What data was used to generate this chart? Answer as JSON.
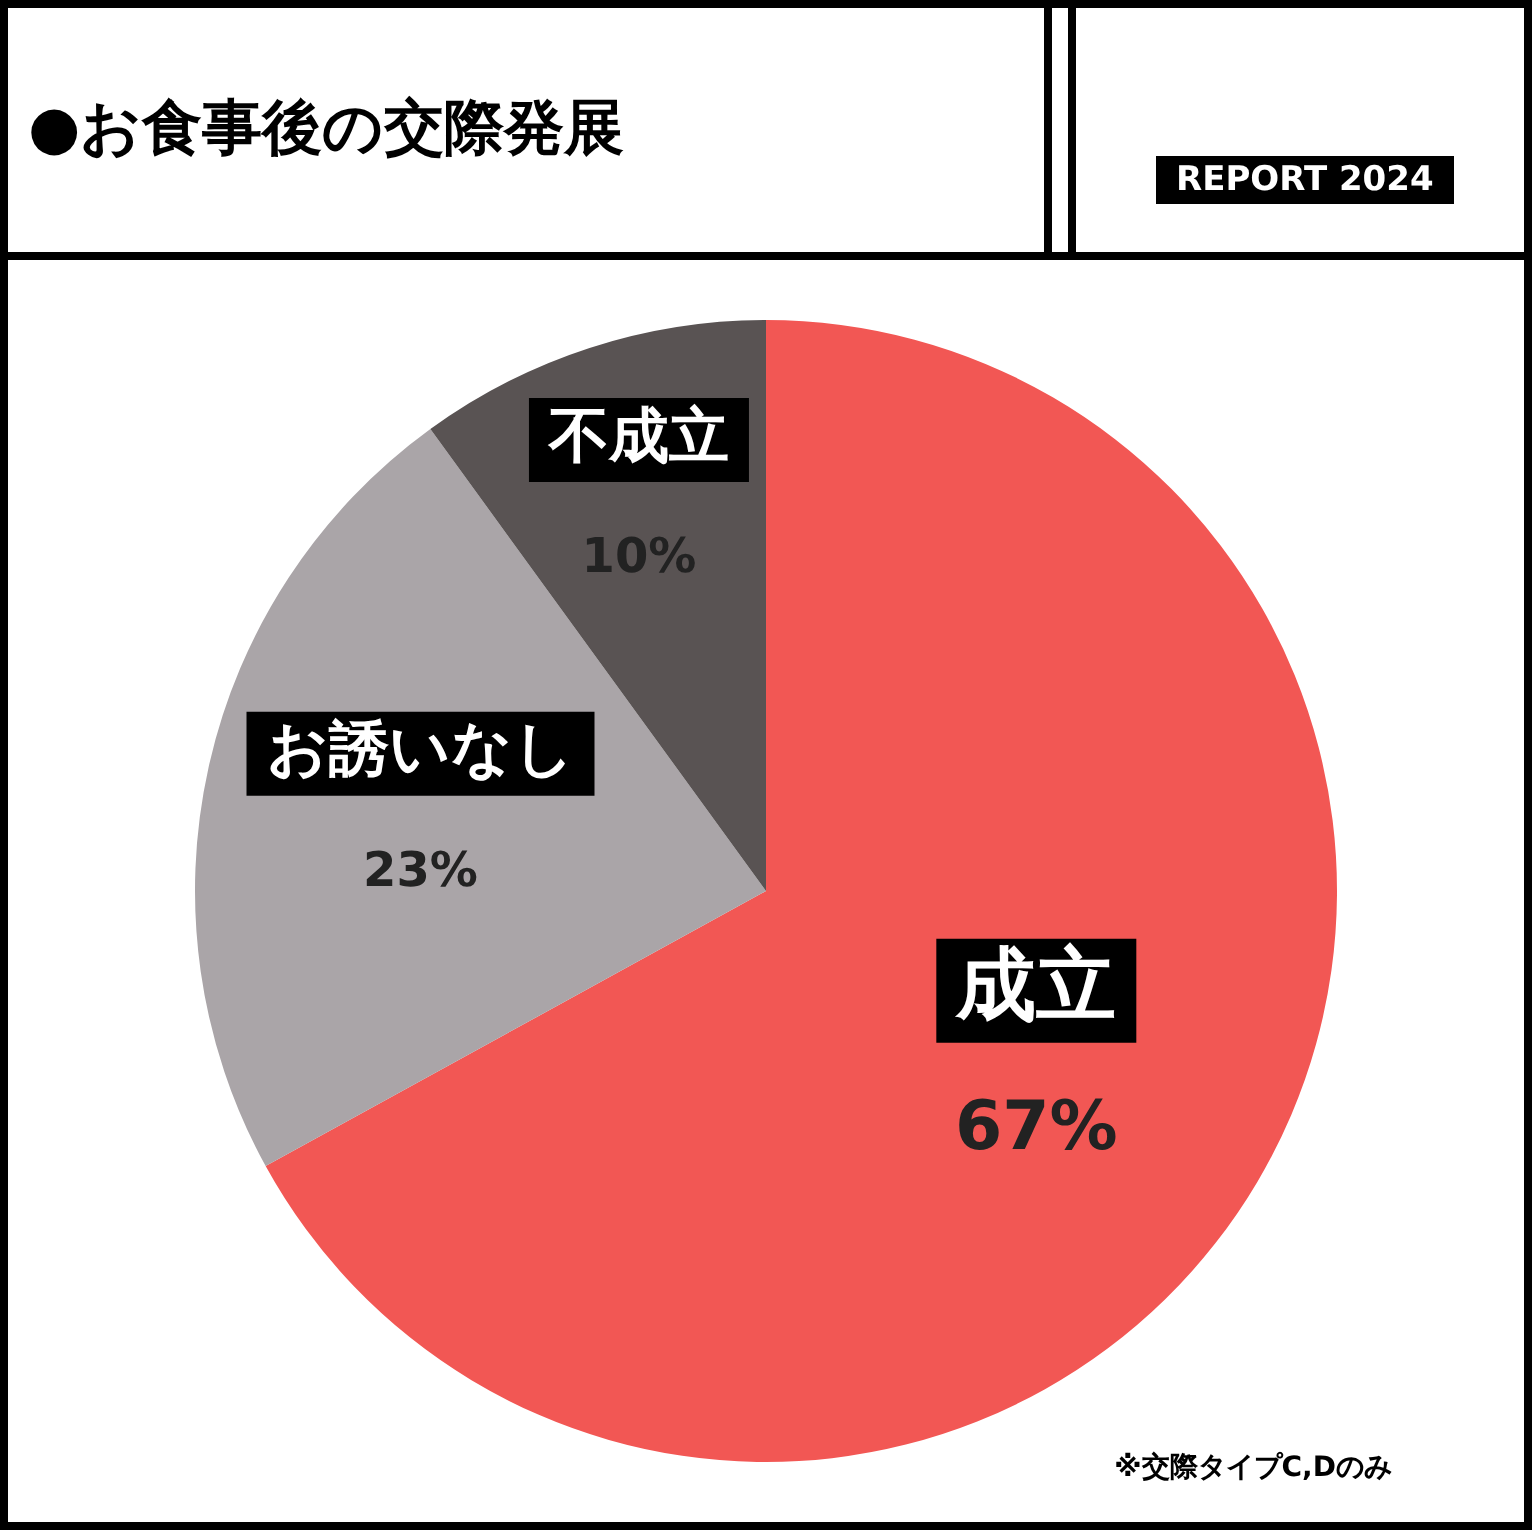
{
  "chart_data": {
    "type": "pie",
    "title": "●お食事後の交際発展",
    "categories": [
      "成立",
      "お誘いなし",
      "不成立"
    ],
    "values": [
      67,
      23,
      10
    ],
    "colors": [
      "#f25754",
      "#aaa5a8",
      "#595353"
    ],
    "value_labels": [
      "67%",
      "23%",
      "10%"
    ],
    "legend": false,
    "annotations": [
      "REPORT 2024",
      "※交際タイプC,Dのみ"
    ]
  }
}
